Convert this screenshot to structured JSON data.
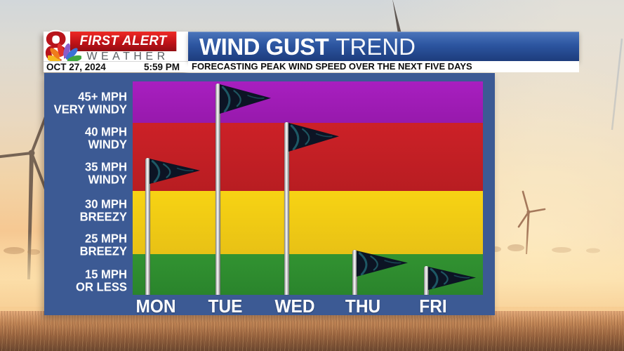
{
  "header": {
    "logo": {
      "channel_number": "8",
      "line1": "FIRST ALERT",
      "line2": "WEATHER"
    },
    "date": "OCT 27, 2024",
    "time": "5:59 PM",
    "title_strong": "WIND GUST",
    "title_light": "TREND",
    "subtitle": "FORECASTING PEAK WIND SPEED OVER THE NEXT FIVE DAYS"
  },
  "chart_data": {
    "type": "bar",
    "title": "WIND GUST TREND",
    "subtitle": "FORECASTING PEAK WIND SPEED OVER THE NEXT FIVE DAYS",
    "marker": "pennant-flag-on-pole",
    "categories": [
      "MON",
      "TUE",
      "WED",
      "THU",
      "FRI"
    ],
    "values_mph": [
      37,
      46,
      42,
      24,
      20
    ],
    "unit": "MPH",
    "ylim": [
      10,
      50
    ],
    "legend_position": "none",
    "grid": false,
    "pole_height_frac": [
      0.64,
      0.99,
      0.81,
      0.21,
      0.135
    ],
    "scale_labels": [
      {
        "line1": "45+ MPH",
        "line2": "VERY WINDY"
      },
      {
        "line1": "40 MPH",
        "line2": "WINDY"
      },
      {
        "line1": "35 MPH",
        "line2": "WINDY"
      },
      {
        "line1": "30 MPH",
        "line2": "BREEZY"
      },
      {
        "line1": "25 MPH",
        "line2": "BREEZY"
      },
      {
        "line1": "15 MPH",
        "line2": "OR LESS"
      }
    ],
    "color_bands": [
      {
        "name": "very-windy",
        "color": "#a81fc0",
        "color2": "#9719ac",
        "frac": 0.194
      },
      {
        "name": "windy",
        "color": "#cc2127",
        "color2": "#b81d22",
        "frac": 0.319
      },
      {
        "name": "breezy",
        "color": "#f7d314",
        "color2": "#e8c115",
        "frac": 0.296
      },
      {
        "name": "light-wind",
        "color": "#329331",
        "color2": "#2a842c",
        "frac": 0.191
      }
    ],
    "colors": {
      "panel_navy": "#3c5a94",
      "flag_dark": "#0c1424",
      "flag_teal": "#2c8f9b"
    }
  }
}
